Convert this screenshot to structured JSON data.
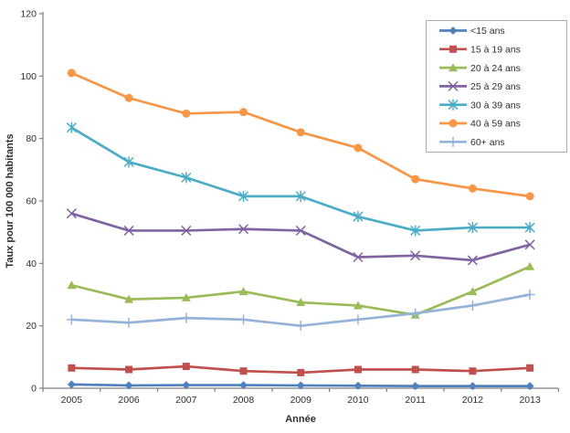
{
  "chart_data": {
    "type": "line",
    "title": "",
    "xlabel": "Année",
    "ylabel": "Taux pour 100 000 habitants",
    "x": [
      2005,
      2006,
      2007,
      2008,
      2009,
      2010,
      2011,
      2012,
      2013
    ],
    "ylim": [
      0,
      120
    ],
    "yticks": [
      0,
      20,
      40,
      60,
      80,
      100,
      120
    ],
    "grid": false,
    "legend_position": "top-right",
    "axis_color": "#7f7f7f",
    "series": [
      {
        "name": "<15 ans",
        "color": "#4F81BD",
        "marker": "diamond",
        "values": [
          1.2,
          0.9,
          1.0,
          1.0,
          0.9,
          0.8,
          0.7,
          0.7,
          0.7
        ]
      },
      {
        "name": "15 à 19 ans",
        "color": "#C0504D",
        "marker": "square",
        "values": [
          6.5,
          6.0,
          7.0,
          5.5,
          5.0,
          6.0,
          6.0,
          5.5,
          6.5
        ]
      },
      {
        "name": "20 à 24 ans",
        "color": "#9BBB59",
        "marker": "triangle",
        "values": [
          33,
          28.5,
          29,
          31,
          27.5,
          26.5,
          23.5,
          31,
          39
        ]
      },
      {
        "name": "25 à 29 ans",
        "color": "#8064A2",
        "marker": "x",
        "values": [
          56,
          50.5,
          50.5,
          51,
          50.5,
          42,
          42.5,
          41,
          46
        ]
      },
      {
        "name": "30 à 39 ans",
        "color": "#4BACC6",
        "marker": "star",
        "values": [
          83.5,
          72.5,
          67.5,
          61.5,
          61.5,
          55,
          50.5,
          51.5,
          51.5
        ]
      },
      {
        "name": "40 à 59 ans",
        "color": "#F79646",
        "marker": "circle",
        "values": [
          101,
          93,
          88,
          88.5,
          82,
          77,
          67,
          64,
          61.5
        ]
      },
      {
        "name": "60+ ans",
        "color": "#95B3D7",
        "marker": "plus",
        "values": [
          22,
          21,
          22.5,
          22,
          20,
          22,
          24,
          26.5,
          30
        ]
      }
    ]
  }
}
